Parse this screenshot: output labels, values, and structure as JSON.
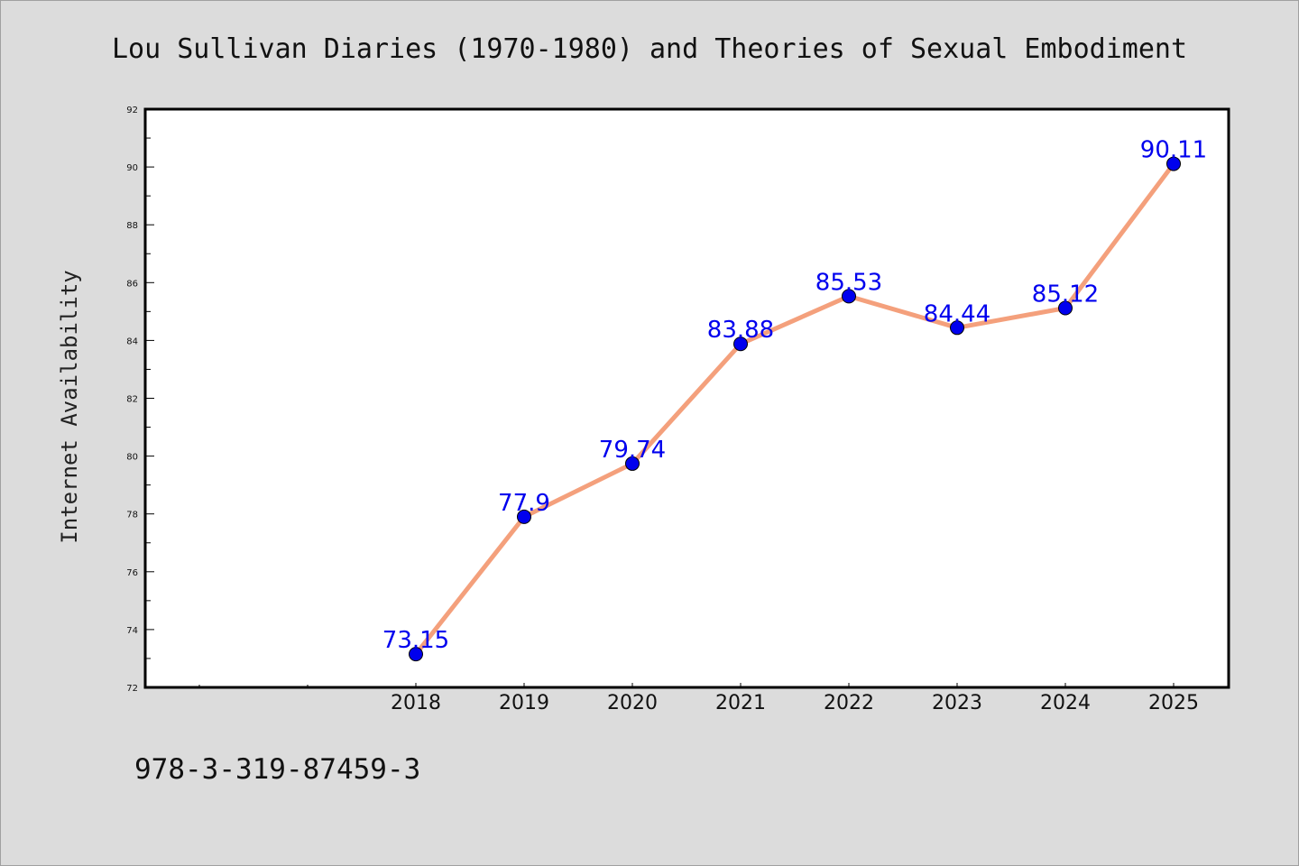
{
  "chart_data": {
    "type": "line",
    "title": "Lou Sullivan Diaries (1970-1980) and Theories of Sexual Embodiment",
    "xlabel": "",
    "ylabel": "Internet Availability",
    "categories": [
      "2018",
      "2019",
      "2020",
      "2021",
      "2022",
      "2023",
      "2024",
      "2025"
    ],
    "values": [
      73.15,
      77.9,
      79.74,
      83.88,
      85.53,
      84.44,
      85.12,
      90.11
    ],
    "data_labels": [
      "73.15",
      "77.9",
      "79.74",
      "83.88",
      "85.53",
      "84.44",
      "85.12",
      "90.11"
    ],
    "ylim": [
      72,
      92
    ],
    "yticks": [
      "72",
      "74",
      "76",
      "78",
      "80",
      "82",
      "84",
      "86",
      "88",
      "90",
      "92"
    ],
    "grid": false,
    "line_color": "#f4a07c",
    "marker_color": "#0000ee",
    "label_color": "#0000ee",
    "background": "#dcdcdc"
  },
  "footer": {
    "isbn": "978-3-319-87459-3"
  }
}
